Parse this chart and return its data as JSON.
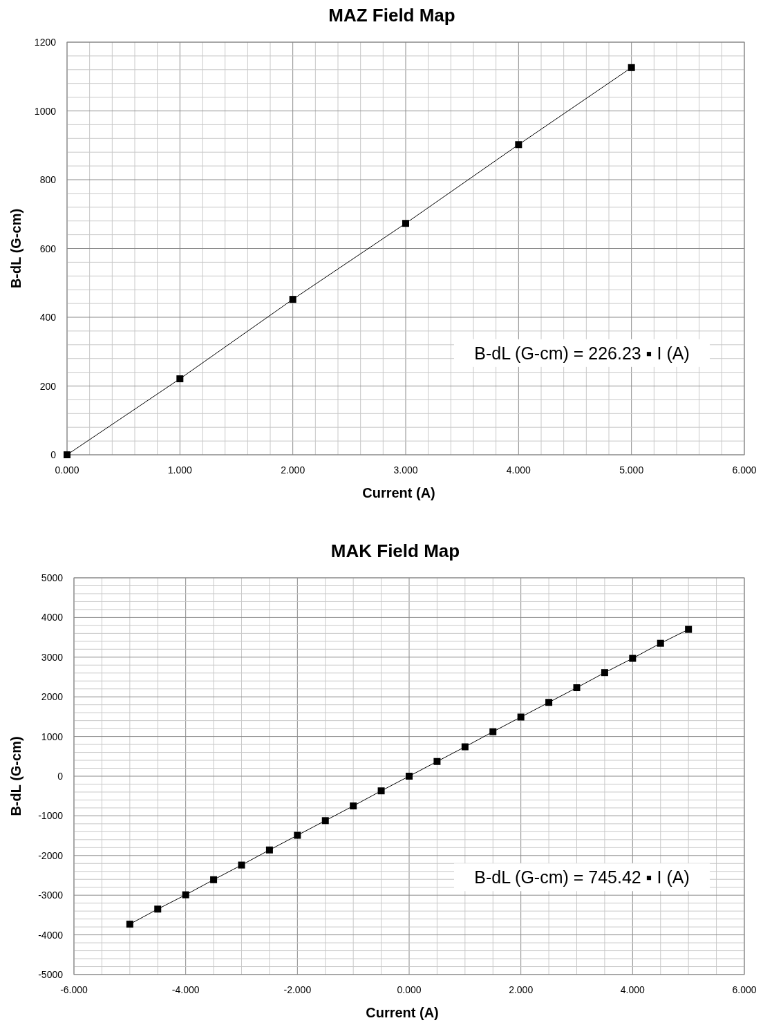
{
  "chart_data": [
    {
      "type": "line",
      "title": "MAZ Field Map",
      "xlabel": "Current (A)",
      "ylabel": "B-dL (G-cm)",
      "marker": "square",
      "line_style": "solid",
      "grid": true,
      "x": [
        0,
        1,
        2,
        3,
        4,
        5
      ],
      "series": [
        {
          "color": "#000000",
          "values": [
            0,
            221,
            452,
            673,
            902,
            1126
          ]
        }
      ],
      "xlim": [
        0,
        6
      ],
      "ylim": [
        0,
        1200
      ],
      "xticks": [
        {
          "value": 0,
          "label": "0.000"
        },
        {
          "value": 0.2,
          "label": null
        },
        {
          "value": 0.4,
          "label": null
        },
        {
          "value": 0.6,
          "label": null
        },
        {
          "value": 0.8,
          "label": null
        },
        {
          "value": 1,
          "label": "1.000"
        },
        {
          "value": 1.2,
          "label": null
        },
        {
          "value": 1.4,
          "label": null
        },
        {
          "value": 1.6,
          "label": null
        },
        {
          "value": 1.8,
          "label": null
        },
        {
          "value": 2,
          "label": "2.000"
        },
        {
          "value": 2.2,
          "label": null
        },
        {
          "value": 2.4,
          "label": null
        },
        {
          "value": 2.6,
          "label": null
        },
        {
          "value": 2.8,
          "label": null
        },
        {
          "value": 3,
          "label": "3.000"
        },
        {
          "value": 3.2,
          "label": null
        },
        {
          "value": 3.4,
          "label": null
        },
        {
          "value": 3.6,
          "label": null
        },
        {
          "value": 3.8,
          "label": null
        },
        {
          "value": 4,
          "label": "4.000"
        },
        {
          "value": 4.2,
          "label": null
        },
        {
          "value": 4.4,
          "label": null
        },
        {
          "value": 4.6,
          "label": null
        },
        {
          "value": 4.8,
          "label": null
        },
        {
          "value": 5,
          "label": "5.000"
        },
        {
          "value": 5.2,
          "label": null
        },
        {
          "value": 5.4,
          "label": null
        },
        {
          "value": 5.6,
          "label": null
        },
        {
          "value": 5.8,
          "label": null
        },
        {
          "value": 6,
          "label": "6.000"
        }
      ],
      "yticks": [
        0,
        {
          "value": 40,
          "label": null
        },
        {
          "value": 80,
          "label": null
        },
        {
          "value": 120,
          "label": null
        },
        {
          "value": 160,
          "label": null
        },
        200,
        {
          "value": 240,
          "label": null
        },
        {
          "value": 280,
          "label": null
        },
        {
          "value": 320,
          "label": null
        },
        {
          "value": 360,
          "label": null
        },
        400,
        {
          "value": 440,
          "label": null
        },
        {
          "value": 480,
          "label": null
        },
        {
          "value": 520,
          "label": null
        },
        {
          "value": 560,
          "label": null
        },
        600,
        {
          "value": 640,
          "label": null
        },
        {
          "value": 680,
          "label": null
        },
        {
          "value": 720,
          "label": null
        },
        {
          "value": 760,
          "label": null
        },
        800,
        {
          "value": 840,
          "label": null
        },
        {
          "value": 880,
          "label": null
        },
        {
          "value": 920,
          "label": null
        },
        {
          "value": 960,
          "label": null
        },
        1000,
        {
          "value": 1040,
          "label": null
        },
        {
          "value": 1080,
          "label": null
        },
        {
          "value": 1120,
          "label": null
        },
        {
          "value": 1160,
          "label": null
        },
        1200
      ],
      "annotations": [
        "B-dL (G-cm) = 226.23 ▪ I (A)"
      ]
    },
    {
      "type": "line",
      "title": "MAK Field Map",
      "xlabel": "Current (A)",
      "ylabel": "B-dL (G-cm)",
      "marker": "square",
      "line_style": "solid",
      "grid": true,
      "x": [
        -5,
        -4.5,
        -4,
        -3.5,
        -3,
        -2.5,
        -2,
        -1.5,
        -1,
        -0.5,
        0,
        0.5,
        1,
        1.5,
        2,
        2.5,
        3,
        3.5,
        4,
        4.5,
        5
      ],
      "series": [
        {
          "color": "#000000",
          "values": [
            -3730,
            -3350,
            -2990,
            -2610,
            -2240,
            -1860,
            -1490,
            -1120,
            -750,
            -370,
            0,
            370,
            740,
            1120,
            1490,
            1860,
            2230,
            2610,
            2970,
            3350,
            3700
          ]
        }
      ],
      "xlim": [
        -6,
        6
      ],
      "ylim": [
        -5000,
        5000
      ],
      "xticks": [
        {
          "value": -6,
          "label": "-6.000"
        },
        {
          "value": -5.5,
          "label": null
        },
        {
          "value": -5,
          "label": null
        },
        {
          "value": -4.5,
          "label": null
        },
        {
          "value": -4,
          "label": "-4.000"
        },
        {
          "value": -3.5,
          "label": null
        },
        {
          "value": -3,
          "label": null
        },
        {
          "value": -2.5,
          "label": null
        },
        {
          "value": -2,
          "label": "-2.000"
        },
        {
          "value": -1.5,
          "label": null
        },
        {
          "value": -1,
          "label": null
        },
        {
          "value": -0.5,
          "label": null
        },
        {
          "value": 0,
          "label": "0.000"
        },
        {
          "value": 0.5,
          "label": null
        },
        {
          "value": 1,
          "label": null
        },
        {
          "value": 1.5,
          "label": null
        },
        {
          "value": 2,
          "label": "2.000"
        },
        {
          "value": 2.5,
          "label": null
        },
        {
          "value": 3,
          "label": null
        },
        {
          "value": 3.5,
          "label": null
        },
        {
          "value": 4,
          "label": "4.000"
        },
        {
          "value": 4.5,
          "label": null
        },
        {
          "value": 5,
          "label": null
        },
        {
          "value": 5.5,
          "label": null
        },
        {
          "value": 6,
          "label": "6.000"
        }
      ],
      "yticks": [
        -5000,
        {
          "value": -4800,
          "label": null
        },
        {
          "value": -4600,
          "label": null
        },
        {
          "value": -4400,
          "label": null
        },
        {
          "value": -4200,
          "label": null
        },
        -4000,
        {
          "value": -3800,
          "label": null
        },
        {
          "value": -3600,
          "label": null
        },
        {
          "value": -3400,
          "label": null
        },
        {
          "value": -3200,
          "label": null
        },
        -3000,
        {
          "value": -2800,
          "label": null
        },
        {
          "value": -2600,
          "label": null
        },
        {
          "value": -2400,
          "label": null
        },
        {
          "value": -2200,
          "label": null
        },
        -2000,
        {
          "value": -1800,
          "label": null
        },
        {
          "value": -1600,
          "label": null
        },
        {
          "value": -1400,
          "label": null
        },
        {
          "value": -1200,
          "label": null
        },
        -1000,
        {
          "value": -800,
          "label": null
        },
        {
          "value": -600,
          "label": null
        },
        {
          "value": -400,
          "label": null
        },
        {
          "value": -200,
          "label": null
        },
        0,
        {
          "value": 200,
          "label": null
        },
        {
          "value": 400,
          "label": null
        },
        {
          "value": 600,
          "label": null
        },
        {
          "value": 800,
          "label": null
        },
        1000,
        {
          "value": 1200,
          "label": null
        },
        {
          "value": 1400,
          "label": null
        },
        {
          "value": 1600,
          "label": null
        },
        {
          "value": 1800,
          "label": null
        },
        2000,
        {
          "value": 2200,
          "label": null
        },
        {
          "value": 2400,
          "label": null
        },
        {
          "value": 2600,
          "label": null
        },
        {
          "value": 2800,
          "label": null
        },
        3000,
        {
          "value": 3200,
          "label": null
        },
        {
          "value": 3400,
          "label": null
        },
        {
          "value": 3600,
          "label": null
        },
        {
          "value": 3800,
          "label": null
        },
        4000,
        {
          "value": 4200,
          "label": null
        },
        {
          "value": 4400,
          "label": null
        },
        {
          "value": 4600,
          "label": null
        },
        {
          "value": 4800,
          "label": null
        },
        5000
      ],
      "annotations": [
        "B-dL (G-cm) = 745.42 ▪ I (A)"
      ]
    }
  ]
}
